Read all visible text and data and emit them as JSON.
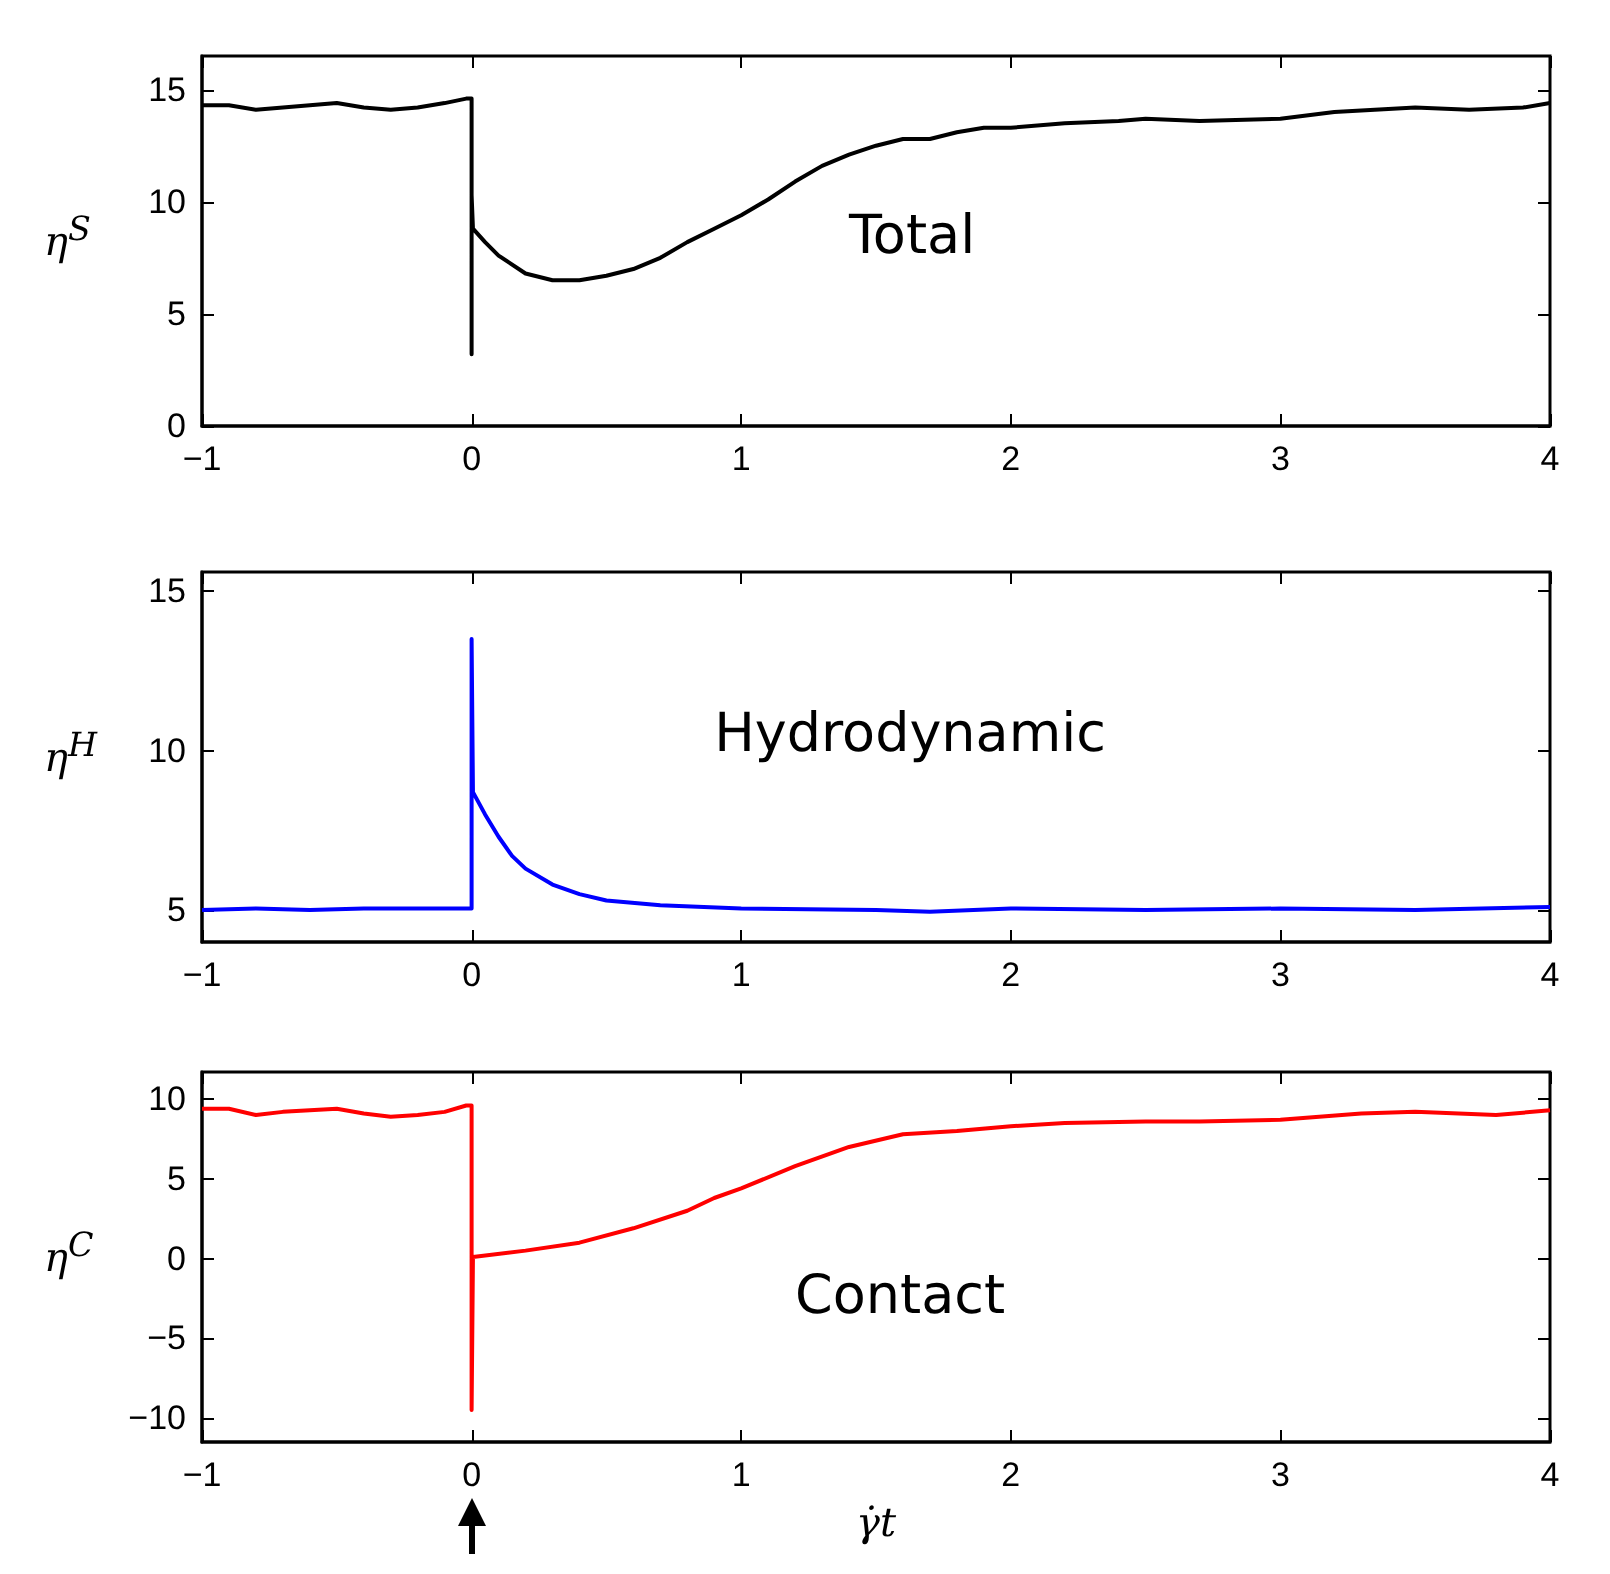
{
  "chart_data": [
    {
      "type": "line",
      "ylabel": "η$^{S}$",
      "annotations": [
        "Total"
      ],
      "color": "#000000",
      "xlim": [
        -1,
        4
      ],
      "xticks": [
        -1,
        0,
        1,
        2,
        3,
        4
      ],
      "ylim": [
        0,
        16.5
      ],
      "yticks": [
        0,
        5,
        10,
        15
      ],
      "grid": false,
      "marker": "none",
      "line_style": "solid",
      "x": [
        -1,
        -0.9,
        -0.8,
        -0.7,
        -0.6,
        -0.5,
        -0.4,
        -0.3,
        -0.2,
        -0.1,
        -0.02,
        0,
        0,
        0,
        0.005,
        0.05,
        0.1,
        0.2,
        0.3,
        0.4,
        0.5,
        0.6,
        0.7,
        0.8,
        0.9,
        1.0,
        1.1,
        1.2,
        1.3,
        1.4,
        1.5,
        1.6,
        1.7,
        1.8,
        1.9,
        2.0,
        2.2,
        2.4,
        2.5,
        2.7,
        3.0,
        3.2,
        3.5,
        3.7,
        3.9,
        4.0
      ],
      "values": [
        14.3,
        14.3,
        14.1,
        14.2,
        14.3,
        14.4,
        14.2,
        14.1,
        14.2,
        14.4,
        14.6,
        14.6,
        3.2,
        10.3,
        8.8,
        8.2,
        7.6,
        6.8,
        6.5,
        6.5,
        6.7,
        7.0,
        7.5,
        8.2,
        8.8,
        9.4,
        10.1,
        10.9,
        11.6,
        12.1,
        12.5,
        12.8,
        12.8,
        13.1,
        13.3,
        13.3,
        13.5,
        13.6,
        13.7,
        13.6,
        13.7,
        14.0,
        14.2,
        14.1,
        14.2,
        14.4
      ]
    },
    {
      "type": "line",
      "ylabel": "η$^{H}$",
      "annotations": [
        "Hydrodynamic"
      ],
      "color": "#0000ff",
      "xlim": [
        -1,
        4
      ],
      "xticks": [
        -1,
        0,
        1,
        2,
        3,
        4
      ],
      "ylim": [
        4,
        15.6
      ],
      "yticks": [
        5,
        10,
        15
      ],
      "grid": false,
      "marker": "none",
      "line_style": "solid",
      "x": [
        -1,
        -0.8,
        -0.6,
        -0.4,
        -0.2,
        0,
        0,
        0.005,
        0.05,
        0.1,
        0.15,
        0.2,
        0.3,
        0.4,
        0.5,
        0.7,
        1.0,
        1.5,
        1.7,
        2.0,
        2.5,
        3.0,
        3.5,
        4.0
      ],
      "values": [
        5.0,
        5.05,
        5.0,
        5.05,
        5.05,
        5.05,
        13.5,
        8.7,
        8.0,
        7.3,
        6.7,
        6.3,
        5.8,
        5.5,
        5.3,
        5.15,
        5.05,
        5.0,
        4.95,
        5.05,
        5.0,
        5.05,
        5.0,
        5.1
      ]
    },
    {
      "type": "line",
      "ylabel": "η$^{C}$",
      "xlabel": "γ̇t",
      "annotations": [
        "Contact"
      ],
      "color": "#ff0000",
      "xlim": [
        -1,
        4
      ],
      "xticks": [
        -1,
        0,
        1,
        2,
        3,
        4
      ],
      "ylim": [
        -11.5,
        11.7
      ],
      "yticks": [
        -10,
        -5,
        0,
        5,
        10
      ],
      "grid": false,
      "marker": "none",
      "line_style": "solid",
      "x": [
        -1,
        -0.9,
        -0.8,
        -0.7,
        -0.6,
        -0.5,
        -0.4,
        -0.3,
        -0.2,
        -0.1,
        -0.02,
        0,
        0,
        0.005,
        0.2,
        0.4,
        0.6,
        0.8,
        0.9,
        1.0,
        1.2,
        1.4,
        1.6,
        1.8,
        2.0,
        2.2,
        2.5,
        2.7,
        3.0,
        3.3,
        3.5,
        3.8,
        4.0
      ],
      "values": [
        9.4,
        9.4,
        9.0,
        9.2,
        9.3,
        9.4,
        9.1,
        8.9,
        9.0,
        9.2,
        9.6,
        9.6,
        -9.5,
        0.1,
        0.5,
        1.0,
        1.9,
        3.0,
        3.8,
        4.4,
        5.8,
        7.0,
        7.8,
        8.0,
        8.3,
        8.5,
        8.6,
        8.6,
        8.7,
        9.1,
        9.2,
        9.0,
        9.3
      ]
    }
  ]
}
